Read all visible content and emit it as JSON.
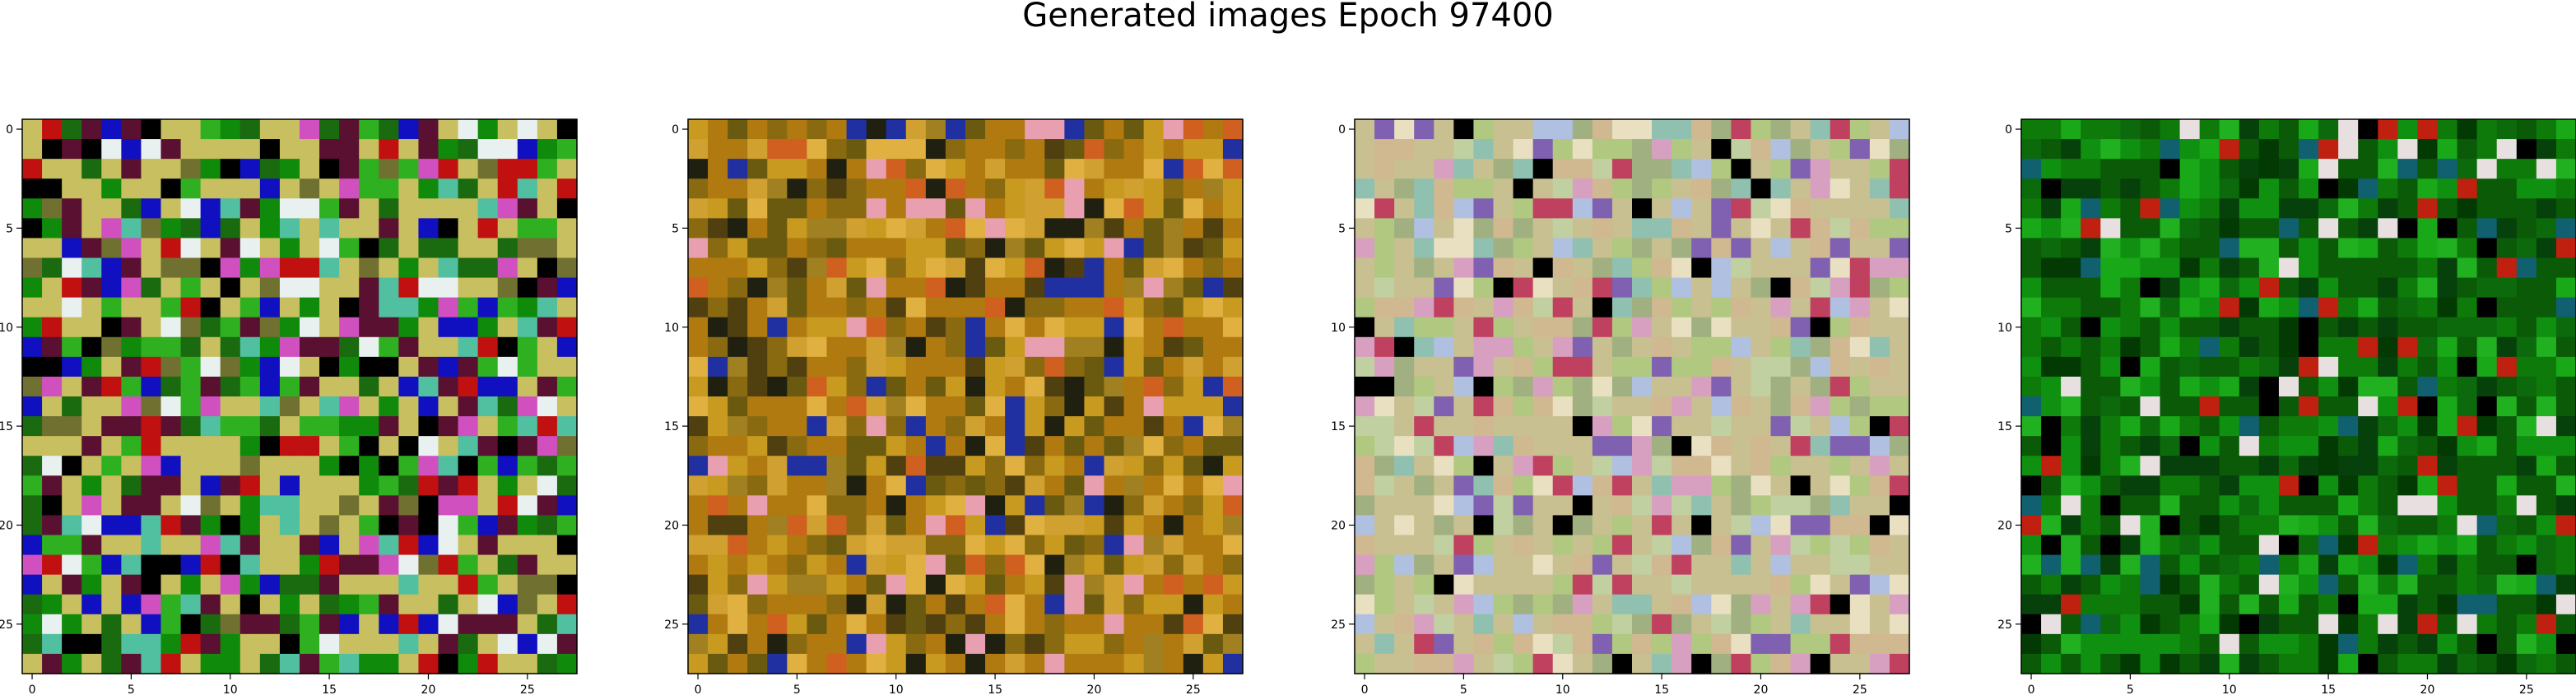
{
  "title": "Generated images Epoch 97400",
  "chart_data": [
    {
      "type": "heatmap",
      "description_kind": "RGB image 28x28",
      "xlim": [
        -0.5,
        27.5
      ],
      "ylim": [
        27.5,
        -0.5
      ],
      "x_ticks": [
        "0",
        "5",
        "10",
        "15",
        "20",
        "25"
      ],
      "y_ticks": [
        "0",
        "5",
        "10",
        "15",
        "20",
        "25"
      ],
      "palette": [
        "#c8c060",
        "#5a1030",
        "#1a6a10",
        "#0f8a0a",
        "#2fb020",
        "#000000",
        "#1010c0",
        "#e8f0f0",
        "#c01010",
        "#d050c0",
        "#50c0a0",
        "#707030"
      ],
      "seed": 17
    },
    {
      "type": "heatmap",
      "description_kind": "RGB image 28x28",
      "xlim": [
        -0.5,
        27.5
      ],
      "ylim": [
        27.5,
        -0.5
      ],
      "x_ticks": [
        "0",
        "5",
        "10",
        "15",
        "20",
        "25"
      ],
      "y_ticks": [
        "0",
        "5",
        "10",
        "15",
        "20",
        "25"
      ],
      "palette": [
        "#b07a10",
        "#c89a20",
        "#8a6a10",
        "#d0a030",
        "#6a5a10",
        "#a08020",
        "#e0b040",
        "#504010",
        "#d06020",
        "#2030a0",
        "#e8a0b0",
        "#202010"
      ],
      "seed": 42
    },
    {
      "type": "heatmap",
      "description_kind": "RGB image 28x28",
      "xlim": [
        -0.5,
        27.5
      ],
      "ylim": [
        27.5,
        -0.5
      ],
      "x_ticks": [
        "0",
        "5",
        "10",
        "15",
        "20",
        "25"
      ],
      "y_ticks": [
        "0",
        "5",
        "10",
        "15",
        "20",
        "25"
      ],
      "palette": [
        "#c8c090",
        "#b0c880",
        "#d0b890",
        "#a0b080",
        "#e8e0c0",
        "#c0d0a0",
        "#d8a0c0",
        "#90c0b0",
        "#c04060",
        "#000000",
        "#8060b0",
        "#b0c0e0"
      ],
      "seed": 7
    },
    {
      "type": "heatmap",
      "description_kind": "RGB image 28x28",
      "xlim": [
        -0.5,
        27.5
      ],
      "ylim": [
        27.5,
        -0.5
      ],
      "x_ticks": [
        "0",
        "5",
        "10",
        "15",
        "20",
        "25"
      ],
      "y_ticks": [
        "0",
        "5",
        "10",
        "15",
        "20",
        "25"
      ],
      "palette": [
        "#0a5a08",
        "#0e7a0a",
        "#109010",
        "#06400a",
        "#18a818",
        "#0c6a0c",
        "#20b020",
        "#033a03",
        "#000000",
        "#e8e0e0",
        "#c02010",
        "#106070"
      ],
      "seed": 99
    }
  ]
}
